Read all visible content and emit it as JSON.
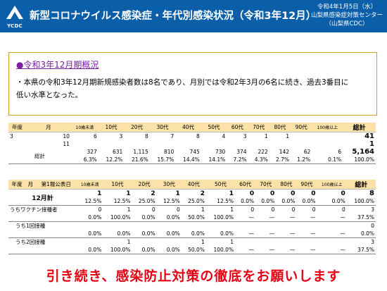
{
  "header": {
    "logo": "YCDC",
    "title": "新型コロナウイルス感染症・年代別感染状況（令和3年12月）",
    "date": "令和4年1月5日（水）",
    "org1": "山梨県感染症対策センター",
    "org2": "（山梨県CDC）",
    "colors": {
      "header_bg": "#0b5fa8",
      "accent": "#7a1fa2",
      "table_header": "#fbe2a8",
      "footer": "#e60012"
    }
  },
  "summary": {
    "title": "●令和3年12月期概況",
    "line1": "・本県の令和3年12月期新規感染者数は8名であり、月別では令和2年3月の6名に続き、過去3番目に",
    "line2": "低い水準となった。"
  },
  "table1": {
    "headers": [
      "年度",
      "月",
      "10歳未満",
      "10代",
      "20代",
      "30代",
      "40代",
      "50代",
      "60代",
      "70代",
      "80代",
      "90代",
      "100歳以上",
      "総計"
    ],
    "row_oct": {
      "year": "3",
      "month": "10",
      "cells": [
        "6",
        "3",
        "8",
        "7",
        "8",
        "4",
        "3",
        "1",
        "1",
        "",
        "",
        ""
      ],
      "total": "41"
    },
    "row_nov": {
      "month": "11",
      "cells": [
        "",
        "",
        "",
        "",
        "",
        "",
        "",
        "",
        "",
        "",
        "",
        ""
      ],
      "total": "1"
    },
    "total_label": "総計",
    "total_counts": [
      "327",
      "631",
      "1,115",
      "810",
      "745",
      "730",
      "374",
      "222",
      "142",
      "62",
      "6",
      "5,164"
    ],
    "total_pct": [
      "6.3%",
      "12.2%",
      "21.6%",
      "15.7%",
      "14.4%",
      "14.1%",
      "7.2%",
      "4.3%",
      "2.7%",
      "1.2%",
      "0.1%",
      "100.0%"
    ]
  },
  "table2": {
    "headers": [
      "年度",
      "月",
      "第1報公表日",
      "10歳未満",
      "10代",
      "20代",
      "30代",
      "40代",
      "50代",
      "60代",
      "70代",
      "80代",
      "90代",
      "100歳以上",
      "総計"
    ],
    "month_label": "12月計",
    "month_counts": [
      "1",
      "1",
      "2",
      "1",
      "2",
      "1",
      "0",
      "0",
      "0",
      "0",
      "0",
      "8"
    ],
    "month_pct": [
      "12.5%",
      "12.5%",
      "25.0%",
      "12.5%",
      "25.0%",
      "12.5%",
      "0.0%",
      "0.0%",
      "0.0%",
      "0.0%",
      "0.0%",
      "100.0%"
    ],
    "groups": [
      {
        "label": "うちワクチン接種者",
        "counts": [
          "0",
          "1",
          "0",
          "0",
          "1",
          "1",
          "0",
          "0",
          "0",
          "0",
          "0",
          "3"
        ],
        "pct": [
          "0.0%",
          "100.0%",
          "0.0%",
          "0.0%",
          "50.0%",
          "100.0%",
          "—",
          "—",
          "—",
          "—",
          "—",
          "37.5%"
        ]
      },
      {
        "label": "うち1回接種",
        "counts": [
          "",
          "",
          "",
          "",
          "",
          "",
          "",
          "",
          "",
          "",
          "",
          "0"
        ],
        "pct": [
          "0.0%",
          "0.0%",
          "0.0%",
          "0.0%",
          "0.0%",
          "0.0%",
          "—",
          "—",
          "—",
          "—",
          "—",
          "0.0%"
        ]
      },
      {
        "label": "うち2回接種",
        "counts": [
          "",
          "1",
          "",
          "",
          "1",
          "1",
          "",
          "",
          "",
          "",
          "",
          "3"
        ],
        "pct": [
          "0.0%",
          "100.0%",
          "0.0%",
          "0.0%",
          "50.0%",
          "100.0%",
          "—",
          "—",
          "—",
          "—",
          "—",
          "37.5%"
        ]
      }
    ]
  },
  "footer": "引き続き、感染防止対策の徹底をお願いします"
}
